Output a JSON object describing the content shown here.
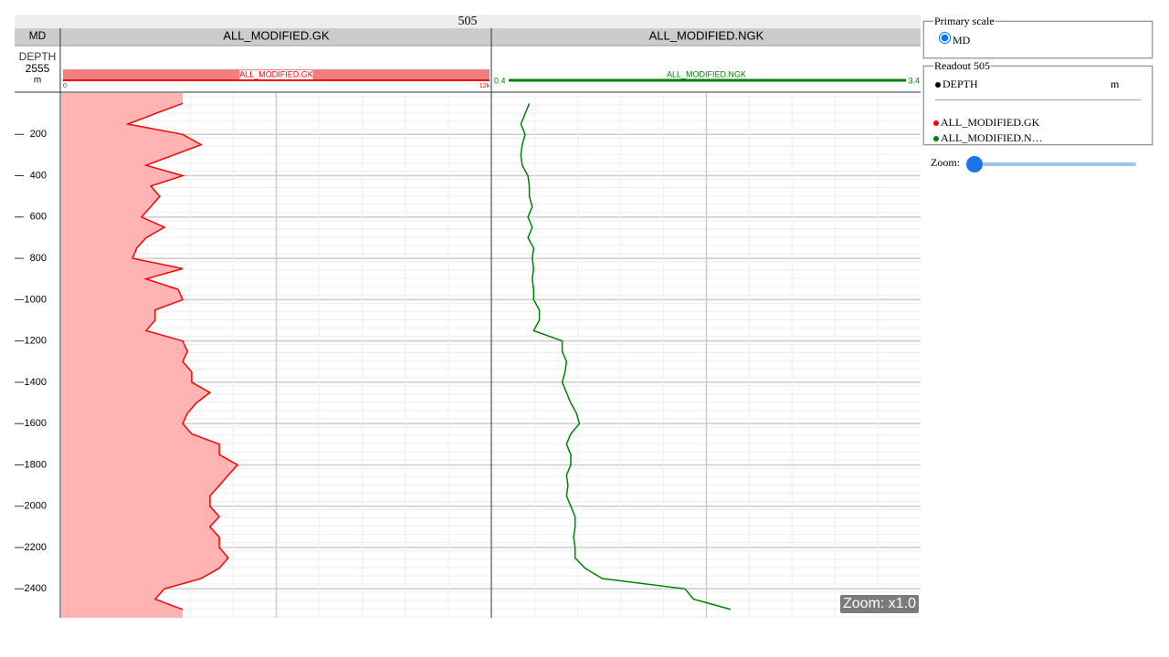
{
  "title": "505",
  "scale_header": "MD",
  "depth": {
    "label": "DEPTH",
    "value": 2555,
    "unit": "m",
    "ylim": [
      0,
      2540
    ],
    "yticks": [
      200,
      400,
      600,
      800,
      1000,
      1200,
      1400,
      1600,
      1800,
      2000,
      2200,
      2400
    ],
    "samples": [
      50,
      100,
      150,
      200,
      250,
      300,
      350,
      400,
      450,
      500,
      550,
      600,
      650,
      700,
      750,
      800,
      850,
      900,
      950,
      1000,
      1050,
      1100,
      1150,
      1200,
      1250,
      1300,
      1350,
      1400,
      1450,
      1500,
      1550,
      1600,
      1650,
      1700,
      1750,
      1800,
      1850,
      1900,
      1950,
      2000,
      2050,
      2100,
      2150,
      2200,
      2250,
      2300,
      2350,
      2400,
      2450,
      2500
    ]
  },
  "tracks": [
    {
      "name": "ALL_MODIFIED.GK",
      "color": "#ff0000",
      "fill": "#ffb3b3",
      "xlim": [
        0,
        12000
      ],
      "xticks": [
        0,
        {
          "value": 12000,
          "label": "12k"
        }
      ],
      "values": [
        3390,
        2620,
        1860,
        3390,
        3900,
        3130,
        2370,
        3390,
        2500,
        2750,
        2500,
        2240,
        2880,
        2370,
        2110,
        1990,
        3390,
        2370,
        3260,
        3390,
        2620,
        2620,
        2370,
        3390,
        3520,
        3390,
        3640,
        3640,
        4150,
        3770,
        3520,
        3390,
        3640,
        4410,
        4410,
        4920,
        4660,
        4410,
        4150,
        4150,
        4410,
        4150,
        4410,
        4410,
        4660,
        4410,
        3900,
        2880,
        2620,
        3390
      ]
    },
    {
      "name": "ALL_MODIFIED.NGK",
      "color": "#008000",
      "xlim": [
        0.4,
        3.4
      ],
      "xticks": [
        0.4,
        3.4
      ],
      "values": [
        0.66,
        0.63,
        0.6,
        0.63,
        0.61,
        0.6,
        0.61,
        0.65,
        0.66,
        0.66,
        0.68,
        0.65,
        0.68,
        0.65,
        0.69,
        0.68,
        0.69,
        0.68,
        0.69,
        0.69,
        0.73,
        0.73,
        0.69,
        0.89,
        0.89,
        0.92,
        0.91,
        0.89,
        0.92,
        0.95,
        0.99,
        1.01,
        0.95,
        0.92,
        0.95,
        0.95,
        0.92,
        0.93,
        0.92,
        0.95,
        0.98,
        0.98,
        0.97,
        0.98,
        0.98,
        1.05,
        1.17,
        1.75,
        1.81,
        2.07
      ]
    }
  ],
  "sidebar": {
    "primary_scale": {
      "legend": "Primary scale",
      "option": "MD"
    },
    "readout": {
      "legend": "Readout 505",
      "items": [
        {
          "label": "DEPTH",
          "unit": "m",
          "color": "#000000"
        },
        {
          "label": "ALL_MODIFIED.GK",
          "color": "#ff0000"
        },
        {
          "label": "ALL_MODIFIED.N…",
          "color": "#008000"
        }
      ]
    },
    "zoom": "Zoom:"
  },
  "zoom_label": "Zoom: x1.0"
}
